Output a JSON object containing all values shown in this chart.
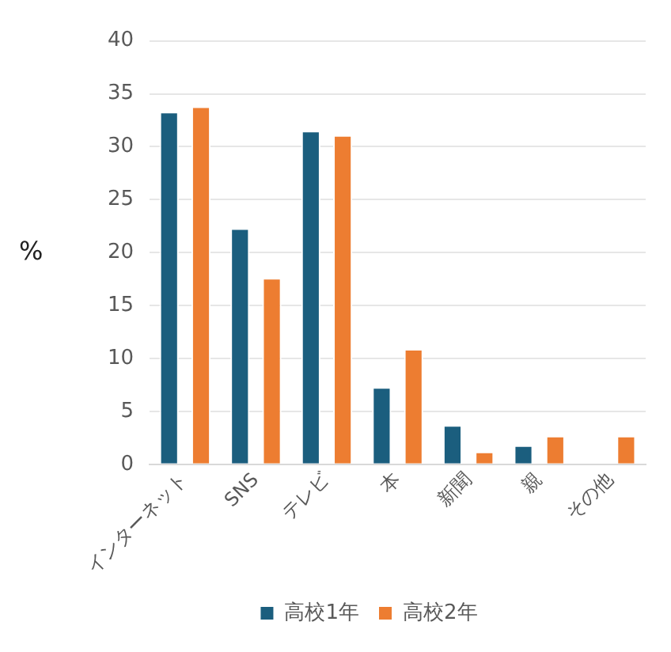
{
  "chart_data": {
    "type": "bar",
    "ylabel": "%",
    "categories": [
      "インターネット",
      "SNS",
      "テレビ",
      "本",
      "新聞",
      "親",
      "その他"
    ],
    "series": [
      {
        "name": "高校1年",
        "color": "#1b5e7e",
        "values": [
          33.3,
          22.3,
          31.5,
          7.3,
          3.7,
          1.8,
          null
        ]
      },
      {
        "name": "高校2年",
        "color": "#ed7d31",
        "values": [
          33.8,
          17.6,
          31.1,
          10.9,
          1.2,
          2.7,
          2.7
        ]
      }
    ],
    "ylim": [
      0,
      40
    ],
    "yticks": [
      0,
      5,
      10,
      15,
      20,
      25,
      30,
      35,
      40
    ],
    "grid": "y",
    "legend": "bottom"
  }
}
